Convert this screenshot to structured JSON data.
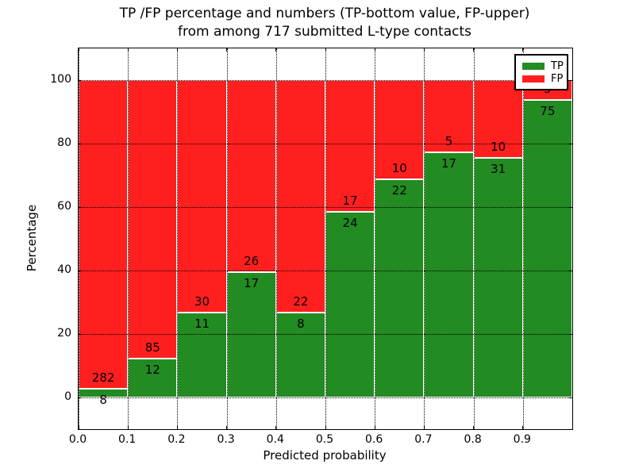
{
  "figure": {
    "title_line1": "TP /FP percentage and numbers (TP-bottom value, FP-upper)",
    "title_line2": "from among 717 submitted L-type contacts"
  },
  "axes": {
    "xlabel": "Predicted probability",
    "ylabel": "Percentage",
    "xtick_labels": [
      "0.0",
      "0.1",
      "0.2",
      "0.3",
      "0.4",
      "0.5",
      "0.6",
      "0.7",
      "0.8",
      "0.9"
    ],
    "ytick_values": [
      0,
      20,
      40,
      60,
      80,
      100
    ],
    "ytick_labels": [
      "0",
      "20",
      "40",
      "60",
      "80",
      "100"
    ],
    "xlim": [
      0.0,
      1.0
    ],
    "ylim": [
      -10,
      110
    ],
    "grid_style": "dotted",
    "grid_on": true
  },
  "legend": {
    "position": "upper-right",
    "items": [
      {
        "label": "TP",
        "color": "#228B22"
      },
      {
        "label": "FP",
        "color": "#ff1f1e"
      }
    ]
  },
  "chart_data": {
    "type": "bar",
    "stacked": true,
    "normalized": "each bin stack sums to 100%",
    "title": "TP /FP percentage and numbers (TP-bottom value, FP-upper) from among 717 submitted L-type contacts",
    "xlabel": "Predicted probability",
    "ylabel": "Percentage",
    "total_contacts": 717,
    "bins": [
      "0.0-0.1",
      "0.1-0.2",
      "0.2-0.3",
      "0.3-0.4",
      "0.4-0.5",
      "0.5-0.6",
      "0.6-0.7",
      "0.7-0.8",
      "0.8-0.9",
      "0.9-1.0"
    ],
    "series": [
      {
        "name": "TP",
        "color": "#228B22",
        "counts": [
          8,
          12,
          11,
          17,
          8,
          24,
          22,
          17,
          31,
          75
        ]
      },
      {
        "name": "FP",
        "color": "#ff1f1e",
        "counts": [
          282,
          85,
          30,
          26,
          22,
          17,
          10,
          5,
          10,
          5
        ]
      }
    ],
    "tp_percent_of_bin": [
      2.76,
      12.37,
      26.83,
      39.53,
      26.67,
      58.54,
      68.75,
      77.27,
      75.61,
      93.75
    ]
  },
  "colors": {
    "tp_green": "#228B22",
    "fp_red": "#ff1f1e",
    "bar_edge": "#ffffff",
    "grid": "#000000",
    "background": "#ffffff"
  }
}
